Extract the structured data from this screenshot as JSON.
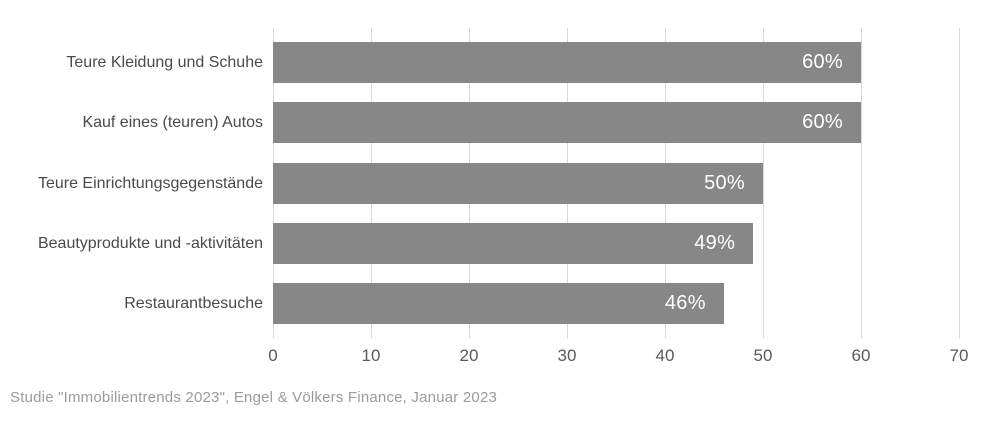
{
  "chart_data": {
    "type": "bar",
    "orientation": "horizontal",
    "categories": [
      "Teure Kleidung und Schuhe",
      "Kauf eines (teuren) Autos",
      "Teure Einrichtungsgegenstände",
      "Beautyprodukte und -aktivitäten",
      "Restaurantbesuche"
    ],
    "values": [
      60,
      60,
      50,
      49,
      46
    ],
    "value_labels": [
      "60%",
      "60%",
      "50%",
      "49%",
      "46%"
    ],
    "x_ticks": [
      "0",
      "10",
      "20",
      "30",
      "40",
      "50",
      "60",
      "70"
    ],
    "x_tick_values": [
      0,
      10,
      20,
      30,
      40,
      50,
      60,
      70
    ],
    "xlim": [
      0,
      70
    ],
    "grid": "vertical",
    "legend": "none",
    "title": "",
    "xlabel": "",
    "ylabel": "",
    "colors": {
      "bar": "#878787",
      "value_text": "#ffffff",
      "gridline": "#d9d9d9",
      "category_label": "#4a4a4a",
      "axis_tick_label": "#5a5a5a",
      "source_text": "#9b9b9b",
      "background": "#ffffff"
    }
  },
  "footer": {
    "source": "Studie \"Immobilientrends 2023\", Engel & Völkers Finance, Januar 2023"
  }
}
